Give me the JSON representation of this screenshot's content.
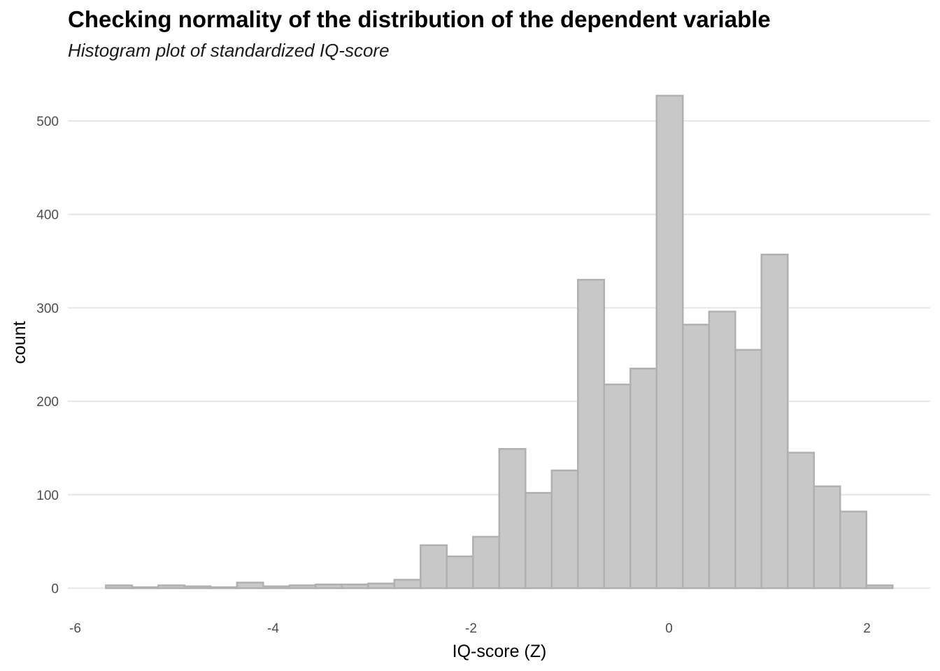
{
  "chart_data": {
    "type": "bar",
    "title": "Checking normality of the distribution of the dependent variable",
    "subtitle": "Histogram plot of standardized IQ-score",
    "xlabel": "IQ-score (Z)",
    "ylabel": "count",
    "xlim": [
      -6,
      2.4
    ],
    "ylim": [
      0,
      540
    ],
    "xticks": [
      -6,
      -4,
      -2,
      0,
      2
    ],
    "yticks": [
      0,
      100,
      200,
      300,
      400,
      500
    ],
    "bin_width": 0.265,
    "bin_start": -5.69,
    "counts": [
      3,
      1,
      3,
      2,
      1,
      6,
      2,
      3,
      4,
      4,
      5,
      9,
      46,
      34,
      55,
      149,
      102,
      126,
      330,
      218,
      235,
      527,
      282,
      296,
      255,
      357,
      145,
      109,
      82,
      3
    ],
    "grid": "horizontal",
    "legend": "none",
    "bar_fill": "#c8c8c8",
    "bar_stroke": "#b0b0b0",
    "grid_color": "#e6e6e6"
  }
}
